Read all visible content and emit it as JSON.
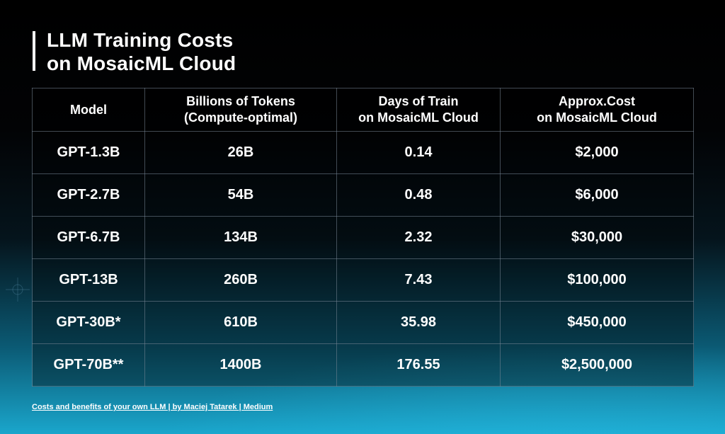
{
  "title": {
    "line1": "LLM Training Costs",
    "line2": "on MosaicML Cloud"
  },
  "chart_data": {
    "type": "table",
    "columns": [
      {
        "line1": "Model",
        "line2": ""
      },
      {
        "line1": "Billions of Tokens",
        "line2": "(Compute-optimal)"
      },
      {
        "line1": "Days of Train",
        "line2": "on MosaicML Cloud"
      },
      {
        "line1": "Approx.Cost",
        "line2": "on MosaicML Cloud"
      }
    ],
    "rows": [
      [
        "GPT-1.3B",
        "26B",
        "0.14",
        "$2,000"
      ],
      [
        "GPT-2.7B",
        "54B",
        "0.48",
        "$6,000"
      ],
      [
        "GPT-6.7B",
        "134B",
        "2.32",
        "$30,000"
      ],
      [
        "GPT-13B",
        "260B",
        "7.43",
        "$100,000"
      ],
      [
        "GPT-30B*",
        "610B",
        "35.98",
        "$450,000"
      ],
      [
        "GPT-70B**",
        "1400B",
        "176.55",
        "$2,500,000"
      ]
    ]
  },
  "source": "Costs and benefits of your own LLM | by Maciej Tatarek | Medium",
  "colors": {
    "background_top": "#000000",
    "background_bottom": "#1aa6cc",
    "text": "#ffffff"
  }
}
